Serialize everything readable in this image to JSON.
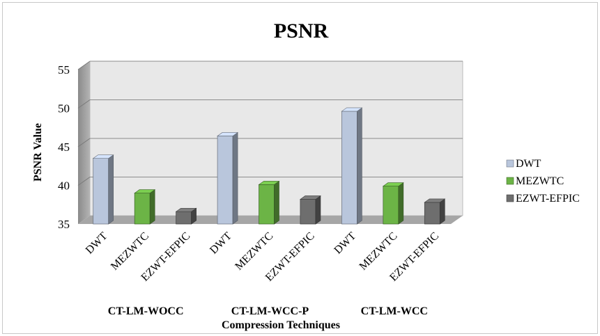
{
  "chart_data": {
    "type": "bar",
    "title": "PSNR",
    "xlabel": "Compression Techniques",
    "ylabel": "PSNR Value",
    "ylim": [
      35,
      55
    ],
    "yticks": [
      "35",
      "40",
      "45",
      "50",
      "55"
    ],
    "grid": true,
    "legend_position": "right",
    "groups": [
      "CT-LM-WOCC",
      "CT-LM-WCC-P",
      "CT-LM-WCC"
    ],
    "categories": [
      "DWT",
      "MEZWTC",
      "EZWT-EFPIC",
      "DWT",
      "MEZWTC",
      "EZWT-EFPIC",
      "DWT",
      "MEZWTC",
      "EZWT-EFPIC"
    ],
    "values": [
      43.5,
      39.0,
      36.6,
      46.4,
      40.1,
      38.2,
      49.6,
      39.9,
      37.8
    ],
    "series": [
      {
        "name": "DWT",
        "color": "#b9c6dc"
      },
      {
        "name": "MEZWTC",
        "color": "#6cb446"
      },
      {
        "name": "EZWT-EFPIC",
        "color": "#6e6e6e"
      }
    ]
  }
}
